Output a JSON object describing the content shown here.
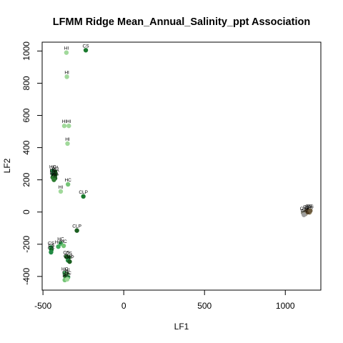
{
  "chart_data": {
    "type": "scatter",
    "title": "LFMM Ridge Mean_Annual_Salinity_ppt Association",
    "xlabel": "LF1",
    "ylabel": "LF2",
    "xlim": [
      -505,
      1220
    ],
    "ylim": [
      -485,
      1055
    ],
    "xticks": [
      -500,
      0,
      500,
      1000
    ],
    "yticks": [
      -400,
      -200,
      0,
      200,
      400,
      600,
      800,
      1000
    ],
    "xtick_labels": [
      "-500",
      "0",
      "500",
      "1000"
    ],
    "ytick_labels": [
      "-400",
      "-200",
      "0",
      "200",
      "400",
      "600",
      "800",
      "1000"
    ],
    "grid": false,
    "points": [
      {
        "x": -355,
        "y": 990,
        "label": "HI",
        "color": "#a1d99b"
      },
      {
        "x": -235,
        "y": 1005,
        "label": "CS",
        "color": "#1a7a2e"
      },
      {
        "x": -352,
        "y": 840,
        "label": "HI",
        "color": "#a1d99b"
      },
      {
        "x": -368,
        "y": 535,
        "label": "HI",
        "color": "#a1d99b"
      },
      {
        "x": -340,
        "y": 535,
        "label": "HI",
        "color": "#a1d99b"
      },
      {
        "x": -348,
        "y": 425,
        "label": "HI",
        "color": "#a1d99b"
      },
      {
        "x": -440,
        "y": 255,
        "label": "HC",
        "color": "#238b45"
      },
      {
        "x": -425,
        "y": 250,
        "label": "WA",
        "color": "#1b5e20"
      },
      {
        "x": -438,
        "y": 235,
        "label": "HC",
        "color": "#238b45"
      },
      {
        "x": -423,
        "y": 232,
        "label": "WA",
        "color": "#1b5e20"
      },
      {
        "x": -440,
        "y": 215,
        "label": "PA",
        "color": "#2e7d32"
      },
      {
        "x": -425,
        "y": 210,
        "label": "WA",
        "color": "#1b5e20"
      },
      {
        "x": -432,
        "y": 200,
        "label": "PA",
        "color": "#2e7d32"
      },
      {
        "x": -345,
        "y": 172,
        "label": "HC",
        "color": "#74c476"
      },
      {
        "x": -390,
        "y": 128,
        "label": "HI",
        "color": "#a1d99b"
      },
      {
        "x": -250,
        "y": 97,
        "label": "CLP",
        "color": "#1a7a2e"
      },
      {
        "x": -290,
        "y": -115,
        "label": "CLP",
        "color": "#1b5e20"
      },
      {
        "x": -390,
        "y": -195,
        "label": "HC",
        "color": "#41ab5d"
      },
      {
        "x": -372,
        "y": -210,
        "label": "HC",
        "color": "#74c476"
      },
      {
        "x": -405,
        "y": -215,
        "label": "HC",
        "color": "#41ab5d"
      },
      {
        "x": -450,
        "y": -220,
        "label": "CS",
        "color": "#238b45"
      },
      {
        "x": -448,
        "y": -235,
        "label": "CS",
        "color": "#1a7a2e"
      },
      {
        "x": -450,
        "y": -250,
        "label": "CS",
        "color": "#238b45"
      },
      {
        "x": -355,
        "y": -278,
        "label": "CS",
        "color": "#2e7d32"
      },
      {
        "x": -340,
        "y": -282,
        "label": "CS",
        "color": "#1b5e20"
      },
      {
        "x": -345,
        "y": -300,
        "label": "CLP",
        "color": "#238b45"
      },
      {
        "x": -335,
        "y": -308,
        "label": "CLP",
        "color": "#1b5e20"
      },
      {
        "x": -365,
        "y": -380,
        "label": "HC",
        "color": "#41ab5d"
      },
      {
        "x": -350,
        "y": -385,
        "label": "HI",
        "color": "#74c476"
      },
      {
        "x": -360,
        "y": -400,
        "label": "CS",
        "color": "#2e7d32"
      },
      {
        "x": -345,
        "y": -405,
        "label": "HC",
        "color": "#41ab5d"
      },
      {
        "x": -365,
        "y": -422,
        "label": "HI",
        "color": "#74c476"
      },
      {
        "x": -350,
        "y": -418,
        "label": "HC",
        "color": "#a1d99b"
      },
      {
        "x": 1110,
        "y": -5,
        "label": "CS",
        "color": "#8d8d80"
      },
      {
        "x": 1130,
        "y": 5,
        "label": "CS",
        "color": "#6d5c3f"
      },
      {
        "x": 1145,
        "y": 10,
        "label": "CS",
        "color": "#5d4a2f"
      },
      {
        "x": 1150,
        "y": -2,
        "label": "CS",
        "color": "#8b7d5a"
      },
      {
        "x": 1125,
        "y": -12,
        "label": "CS",
        "color": "#a09a8a"
      },
      {
        "x": 1140,
        "y": 0,
        "label": "CS",
        "color": "#4e3b22"
      },
      {
        "x": 1115,
        "y": -18,
        "label": "CS",
        "color": "#9e9e9e"
      },
      {
        "x": 1155,
        "y": 8,
        "label": "CS",
        "color": "#6d5c3f"
      }
    ]
  }
}
